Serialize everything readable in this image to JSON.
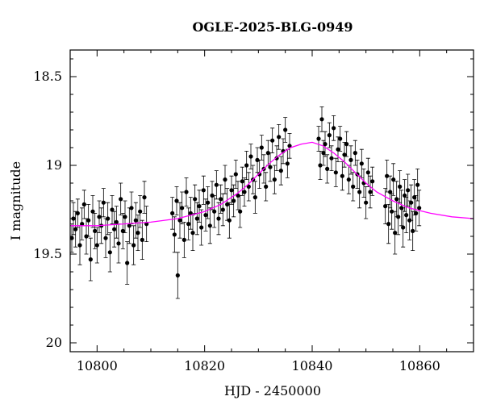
{
  "chart_data": {
    "type": "scatter",
    "title": "OGLE-2025-BLG-0949",
    "xlabel": "HJD - 2450000",
    "ylabel": "I magnitude",
    "xlim": [
      10795,
      10870
    ],
    "ylim": [
      20.05,
      18.35
    ],
    "y_inverted": true,
    "xticks": [
      {
        "value": 10800,
        "label": "10800"
      },
      {
        "value": 10820,
        "label": "10820"
      },
      {
        "value": 10840,
        "label": "10840"
      },
      {
        "value": 10860,
        "label": "10860"
      }
    ],
    "yticks": [
      {
        "value": 18.5,
        "label": "18.5"
      },
      {
        "value": 19,
        "label": "19"
      },
      {
        "value": 19.5,
        "label": "19.5"
      },
      {
        "value": 20,
        "label": "20"
      }
    ],
    "grid": false,
    "series": [
      {
        "type": "scatter-errorbar",
        "color": "#000000",
        "points": [
          {
            "x": 10795.3,
            "y": 19.41,
            "err": 0.08
          },
          {
            "x": 10795.6,
            "y": 19.3,
            "err": 0.09
          },
          {
            "x": 10796.0,
            "y": 19.36,
            "err": 0.1
          },
          {
            "x": 10796.4,
            "y": 19.27,
            "err": 0.08
          },
          {
            "x": 10796.8,
            "y": 19.45,
            "err": 0.11
          },
          {
            "x": 10797.2,
            "y": 19.33,
            "err": 0.09
          },
          {
            "x": 10797.6,
            "y": 19.22,
            "err": 0.08
          },
          {
            "x": 10798.0,
            "y": 19.4,
            "err": 0.1
          },
          {
            "x": 10798.4,
            "y": 19.31,
            "err": 0.09
          },
          {
            "x": 10798.8,
            "y": 19.53,
            "err": 0.12
          },
          {
            "x": 10799.2,
            "y": 19.26,
            "err": 0.09
          },
          {
            "x": 10799.6,
            "y": 19.37,
            "err": 0.1
          },
          {
            "x": 10800.0,
            "y": 19.45,
            "err": 0.1
          },
          {
            "x": 10800.4,
            "y": 19.29,
            "err": 0.09
          },
          {
            "x": 10800.8,
            "y": 19.34,
            "err": 0.1
          },
          {
            "x": 10801.2,
            "y": 19.21,
            "err": 0.08
          },
          {
            "x": 10801.6,
            "y": 19.41,
            "err": 0.11
          },
          {
            "x": 10802.0,
            "y": 19.3,
            "err": 0.09
          },
          {
            "x": 10802.4,
            "y": 19.49,
            "err": 0.11
          },
          {
            "x": 10802.8,
            "y": 19.25,
            "err": 0.08
          },
          {
            "x": 10803.2,
            "y": 19.36,
            "err": 0.1
          },
          {
            "x": 10803.6,
            "y": 19.32,
            "err": 0.09
          },
          {
            "x": 10804.0,
            "y": 19.44,
            "err": 0.11
          },
          {
            "x": 10804.4,
            "y": 19.19,
            "err": 0.09
          },
          {
            "x": 10804.8,
            "y": 19.37,
            "err": 0.1
          },
          {
            "x": 10805.2,
            "y": 19.29,
            "err": 0.09
          },
          {
            "x": 10805.6,
            "y": 19.55,
            "err": 0.12
          },
          {
            "x": 10806.0,
            "y": 19.34,
            "err": 0.1
          },
          {
            "x": 10806.4,
            "y": 19.24,
            "err": 0.09
          },
          {
            "x": 10806.8,
            "y": 19.45,
            "err": 0.11
          },
          {
            "x": 10807.2,
            "y": 19.31,
            "err": 0.1
          },
          {
            "x": 10807.6,
            "y": 19.38,
            "err": 0.1
          },
          {
            "x": 10808.0,
            "y": 19.26,
            "err": 0.09
          },
          {
            "x": 10808.4,
            "y": 19.42,
            "err": 0.11
          },
          {
            "x": 10808.8,
            "y": 19.18,
            "err": 0.09
          },
          {
            "x": 10809.2,
            "y": 19.33,
            "err": 0.1
          },
          {
            "x": 10814.0,
            "y": 19.27,
            "err": 0.09
          },
          {
            "x": 10814.4,
            "y": 19.39,
            "err": 0.1
          },
          {
            "x": 10814.8,
            "y": 19.2,
            "err": 0.08
          },
          {
            "x": 10815.0,
            "y": 19.62,
            "err": 0.13
          },
          {
            "x": 10815.4,
            "y": 19.31,
            "err": 0.1
          },
          {
            "x": 10815.8,
            "y": 19.24,
            "err": 0.09
          },
          {
            "x": 10816.2,
            "y": 19.42,
            "err": 0.1
          },
          {
            "x": 10816.6,
            "y": 19.15,
            "err": 0.08
          },
          {
            "x": 10817.0,
            "y": 19.33,
            "err": 0.09
          },
          {
            "x": 10817.4,
            "y": 19.27,
            "err": 0.09
          },
          {
            "x": 10817.8,
            "y": 19.38,
            "err": 0.1
          },
          {
            "x": 10818.2,
            "y": 19.19,
            "err": 0.08
          },
          {
            "x": 10818.6,
            "y": 19.3,
            "err": 0.09
          },
          {
            "x": 10819.0,
            "y": 19.23,
            "err": 0.09
          },
          {
            "x": 10819.4,
            "y": 19.35,
            "err": 0.1
          },
          {
            "x": 10819.8,
            "y": 19.14,
            "err": 0.08
          },
          {
            "x": 10820.2,
            "y": 19.28,
            "err": 0.09
          },
          {
            "x": 10820.6,
            "y": 19.21,
            "err": 0.09
          },
          {
            "x": 10821.0,
            "y": 19.34,
            "err": 0.1
          },
          {
            "x": 10821.4,
            "y": 19.17,
            "err": 0.08
          },
          {
            "x": 10821.8,
            "y": 19.26,
            "err": 0.09
          },
          {
            "x": 10822.2,
            "y": 19.11,
            "err": 0.08
          },
          {
            "x": 10822.6,
            "y": 19.3,
            "err": 0.09
          },
          {
            "x": 10823.0,
            "y": 19.19,
            "err": 0.08
          },
          {
            "x": 10823.4,
            "y": 19.25,
            "err": 0.09
          },
          {
            "x": 10823.8,
            "y": 19.08,
            "err": 0.08
          },
          {
            "x": 10824.2,
            "y": 19.22,
            "err": 0.09
          },
          {
            "x": 10824.6,
            "y": 19.31,
            "err": 0.1
          },
          {
            "x": 10825.0,
            "y": 19.14,
            "err": 0.08
          },
          {
            "x": 10825.4,
            "y": 19.2,
            "err": 0.09
          },
          {
            "x": 10825.8,
            "y": 19.05,
            "err": 0.08
          },
          {
            "x": 10826.2,
            "y": 19.17,
            "err": 0.08
          },
          {
            "x": 10826.6,
            "y": 19.26,
            "err": 0.09
          },
          {
            "x": 10827.0,
            "y": 19.09,
            "err": 0.08
          },
          {
            "x": 10827.4,
            "y": 19.15,
            "err": 0.08
          },
          {
            "x": 10827.8,
            "y": 19.0,
            "err": 0.08
          },
          {
            "x": 10828.2,
            "y": 19.12,
            "err": 0.08
          },
          {
            "x": 10828.6,
            "y": 18.95,
            "err": 0.07
          },
          {
            "x": 10829.0,
            "y": 19.08,
            "err": 0.08
          },
          {
            "x": 10829.4,
            "y": 19.18,
            "err": 0.09
          },
          {
            "x": 10829.8,
            "y": 18.97,
            "err": 0.07
          },
          {
            "x": 10830.2,
            "y": 19.05,
            "err": 0.08
          },
          {
            "x": 10830.6,
            "y": 18.9,
            "err": 0.07
          },
          {
            "x": 10831.0,
            "y": 19.02,
            "err": 0.08
          },
          {
            "x": 10831.4,
            "y": 19.12,
            "err": 0.08
          },
          {
            "x": 10831.8,
            "y": 18.93,
            "err": 0.07
          },
          {
            "x": 10832.2,
            "y": 19.01,
            "err": 0.08
          },
          {
            "x": 10832.6,
            "y": 18.86,
            "err": 0.07
          },
          {
            "x": 10833.0,
            "y": 19.08,
            "err": 0.08
          },
          {
            "x": 10833.4,
            "y": 18.96,
            "err": 0.07
          },
          {
            "x": 10833.8,
            "y": 18.84,
            "err": 0.07
          },
          {
            "x": 10834.2,
            "y": 19.03,
            "err": 0.08
          },
          {
            "x": 10834.6,
            "y": 18.92,
            "err": 0.07
          },
          {
            "x": 10835.0,
            "y": 18.8,
            "err": 0.07
          },
          {
            "x": 10835.4,
            "y": 18.99,
            "err": 0.08
          },
          {
            "x": 10835.8,
            "y": 18.89,
            "err": 0.07
          },
          {
            "x": 10841.2,
            "y": 18.85,
            "err": 0.07
          },
          {
            "x": 10841.5,
            "y": 19.0,
            "err": 0.08
          },
          {
            "x": 10841.8,
            "y": 18.74,
            "err": 0.07
          },
          {
            "x": 10842.1,
            "y": 18.93,
            "err": 0.07
          },
          {
            "x": 10842.4,
            "y": 18.88,
            "err": 0.07
          },
          {
            "x": 10842.8,
            "y": 19.02,
            "err": 0.08
          },
          {
            "x": 10843.2,
            "y": 18.83,
            "err": 0.07
          },
          {
            "x": 10843.6,
            "y": 18.96,
            "err": 0.07
          },
          {
            "x": 10844.0,
            "y": 18.79,
            "err": 0.07
          },
          {
            "x": 10844.4,
            "y": 19.04,
            "err": 0.08
          },
          {
            "x": 10844.8,
            "y": 18.91,
            "err": 0.07
          },
          {
            "x": 10845.2,
            "y": 18.85,
            "err": 0.07
          },
          {
            "x": 10845.6,
            "y": 19.06,
            "err": 0.08
          },
          {
            "x": 10846.0,
            "y": 18.94,
            "err": 0.07
          },
          {
            "x": 10846.4,
            "y": 18.88,
            "err": 0.07
          },
          {
            "x": 10846.8,
            "y": 19.08,
            "err": 0.08
          },
          {
            "x": 10847.2,
            "y": 18.97,
            "err": 0.08
          },
          {
            "x": 10847.6,
            "y": 19.12,
            "err": 0.08
          },
          {
            "x": 10848.0,
            "y": 18.93,
            "err": 0.07
          },
          {
            "x": 10848.4,
            "y": 19.05,
            "err": 0.08
          },
          {
            "x": 10848.8,
            "y": 19.15,
            "err": 0.09
          },
          {
            "x": 10849.2,
            "y": 18.99,
            "err": 0.08
          },
          {
            "x": 10849.6,
            "y": 19.1,
            "err": 0.08
          },
          {
            "x": 10850.0,
            "y": 19.21,
            "err": 0.09
          },
          {
            "x": 10850.4,
            "y": 19.04,
            "err": 0.08
          },
          {
            "x": 10850.8,
            "y": 19.15,
            "err": 0.09
          },
          {
            "x": 10851.2,
            "y": 19.09,
            "err": 0.08
          },
          {
            "x": 10853.6,
            "y": 19.23,
            "err": 0.1
          },
          {
            "x": 10853.9,
            "y": 19.06,
            "err": 0.09
          },
          {
            "x": 10854.2,
            "y": 19.33,
            "err": 0.11
          },
          {
            "x": 10854.5,
            "y": 19.15,
            "err": 0.09
          },
          {
            "x": 10854.8,
            "y": 19.26,
            "err": 0.1
          },
          {
            "x": 10855.1,
            "y": 19.08,
            "err": 0.09
          },
          {
            "x": 10855.4,
            "y": 19.38,
            "err": 0.12
          },
          {
            "x": 10855.7,
            "y": 19.19,
            "err": 0.1
          },
          {
            "x": 10856.0,
            "y": 19.29,
            "err": 0.1
          },
          {
            "x": 10856.3,
            "y": 19.12,
            "err": 0.09
          },
          {
            "x": 10856.6,
            "y": 19.24,
            "err": 0.1
          },
          {
            "x": 10856.9,
            "y": 19.35,
            "err": 0.11
          },
          {
            "x": 10857.2,
            "y": 19.17,
            "err": 0.09
          },
          {
            "x": 10857.5,
            "y": 19.28,
            "err": 0.1
          },
          {
            "x": 10857.8,
            "y": 19.14,
            "err": 0.09
          },
          {
            "x": 10858.1,
            "y": 19.31,
            "err": 0.11
          },
          {
            "x": 10858.4,
            "y": 19.21,
            "err": 0.1
          },
          {
            "x": 10858.7,
            "y": 19.37,
            "err": 0.11
          },
          {
            "x": 10859.0,
            "y": 19.18,
            "err": 0.1
          },
          {
            "x": 10859.3,
            "y": 19.27,
            "err": 0.1
          },
          {
            "x": 10859.6,
            "y": 19.11,
            "err": 0.09
          },
          {
            "x": 10859.9,
            "y": 19.24,
            "err": 0.1
          }
        ]
      },
      {
        "type": "line",
        "color": "#ff00ff",
        "points": [
          {
            "x": 10795,
            "y": 19.34
          },
          {
            "x": 10800,
            "y": 19.34
          },
          {
            "x": 10805,
            "y": 19.33
          },
          {
            "x": 10810,
            "y": 19.32
          },
          {
            "x": 10815,
            "y": 19.3
          },
          {
            "x": 10820,
            "y": 19.26
          },
          {
            "x": 10823,
            "y": 19.22
          },
          {
            "x": 10826,
            "y": 19.16
          },
          {
            "x": 10828,
            "y": 19.11
          },
          {
            "x": 10830,
            "y": 19.05
          },
          {
            "x": 10832,
            "y": 18.99
          },
          {
            "x": 10834,
            "y": 18.94
          },
          {
            "x": 10836,
            "y": 18.9
          },
          {
            "x": 10838,
            "y": 18.88
          },
          {
            "x": 10840,
            "y": 18.87
          },
          {
            "x": 10842,
            "y": 18.89
          },
          {
            "x": 10844,
            "y": 18.93
          },
          {
            "x": 10846,
            "y": 18.98
          },
          {
            "x": 10848,
            "y": 19.04
          },
          {
            "x": 10850,
            "y": 19.1
          },
          {
            "x": 10852,
            "y": 19.15
          },
          {
            "x": 10855,
            "y": 19.2
          },
          {
            "x": 10858,
            "y": 19.24
          },
          {
            "x": 10862,
            "y": 19.27
          },
          {
            "x": 10866,
            "y": 19.29
          },
          {
            "x": 10870,
            "y": 19.3
          }
        ]
      }
    ]
  }
}
